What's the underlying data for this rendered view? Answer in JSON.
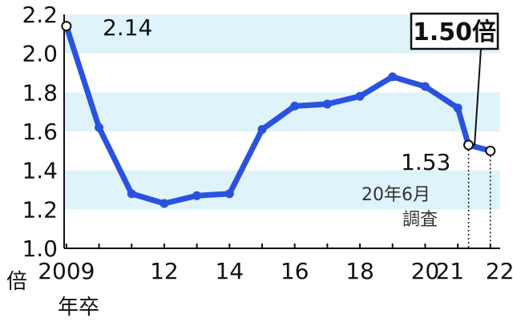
{
  "chart_data": {
    "type": "line",
    "title": "",
    "xlabel": "年卒",
    "ylabel": "倍",
    "ylim": [
      1.0,
      2.2
    ],
    "yticks": [
      "1.0",
      "1.2",
      "1.4",
      "1.6",
      "1.8",
      "2.0",
      "2.2"
    ],
    "xticks": [
      {
        "x": 2009,
        "label": "2009"
      },
      {
        "x": 2012,
        "label": "12"
      },
      {
        "x": 2014,
        "label": "14"
      },
      {
        "x": 2016,
        "label": "16"
      },
      {
        "x": 2018,
        "label": "18"
      },
      {
        "x": 2020,
        "label": "20"
      },
      {
        "x": 2021,
        "label": "21"
      },
      {
        "x": 2022,
        "label": "22"
      }
    ],
    "grid": "horizontal bands",
    "series": [
      {
        "color": "#2a52e0",
        "points": [
          {
            "x": 2009,
            "y": 2.14
          },
          {
            "x": 2010,
            "y": 1.62
          },
          {
            "x": 2011,
            "y": 1.28
          },
          {
            "x": 2012,
            "y": 1.23
          },
          {
            "x": 2013,
            "y": 1.27
          },
          {
            "x": 2014,
            "y": 1.28
          },
          {
            "x": 2015,
            "y": 1.61
          },
          {
            "x": 2016,
            "y": 1.73
          },
          {
            "x": 2017,
            "y": 1.74
          },
          {
            "x": 2018,
            "y": 1.78
          },
          {
            "x": 2019,
            "y": 1.88
          },
          {
            "x": 2020,
            "y": 1.83
          },
          {
            "x": 2021,
            "y": 1.72
          },
          {
            "x": 2021.33,
            "y": 1.53
          },
          {
            "x": 2022,
            "y": 1.5
          }
        ]
      }
    ],
    "annotations": {
      "first": "2.14",
      "survey_value": "1.53",
      "survey_label_line1": "20年6月",
      "survey_label_line2": "調査",
      "latest_callout": "1.50倍"
    },
    "colors": {
      "line": "#2a52e0",
      "band": "#dff3fb",
      "axis": "#111111"
    }
  }
}
